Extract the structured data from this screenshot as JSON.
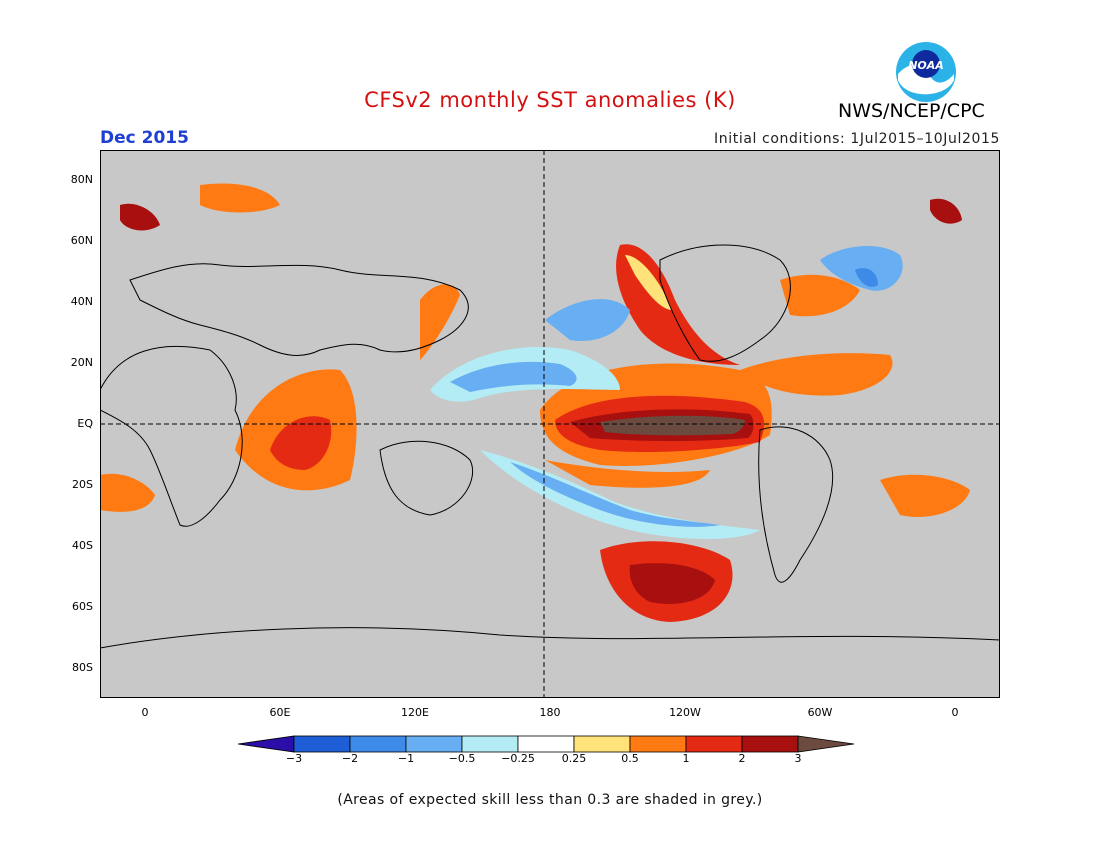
{
  "title": "CFSv2 monthly SST anomalies (K)",
  "agency": "NWS/NCEP/CPC",
  "logo_text": "NOAA",
  "month": "Dec 2015",
  "initial_conditions": "Initial conditions: 1Jul2015–10Jul2015",
  "map": {
    "projection": "equirectangular",
    "lon_range": [
      -20,
      380
    ],
    "lat_range": [
      -90,
      90
    ],
    "y_ticks": [
      "80N",
      "60N",
      "40N",
      "20N",
      "EQ",
      "20S",
      "40S",
      "60S",
      "80S"
    ],
    "y_tick_values": [
      80,
      60,
      40,
      20,
      0,
      -20,
      -40,
      -60,
      -80
    ],
    "x_ticks": [
      "0",
      "60E",
      "120E",
      "180",
      "120W",
      "60W",
      "0"
    ],
    "x_tick_values": [
      0,
      60,
      120,
      180,
      240,
      300,
      360
    ],
    "dashed_reference_lines": [
      "EQ",
      "180"
    ],
    "masked_area_color": "#c8c8c8"
  },
  "colorbar": {
    "labels": [
      "−3",
      "−2",
      "−1",
      "−0.5",
      "−0.25",
      "0.25",
      "0.5",
      "1",
      "2",
      "3"
    ],
    "colors": [
      "#2b0ea8",
      "#1e5fd8",
      "#3d8ae8",
      "#67aef2",
      "#b4ecf5",
      "#ffffff",
      "#ffe27a",
      "#ff7a12",
      "#e52a14",
      "#a80f0f",
      "#6b4a3f"
    ]
  },
  "note": "(Areas of expected skill less than 0.3 are shaded in grey.)"
}
